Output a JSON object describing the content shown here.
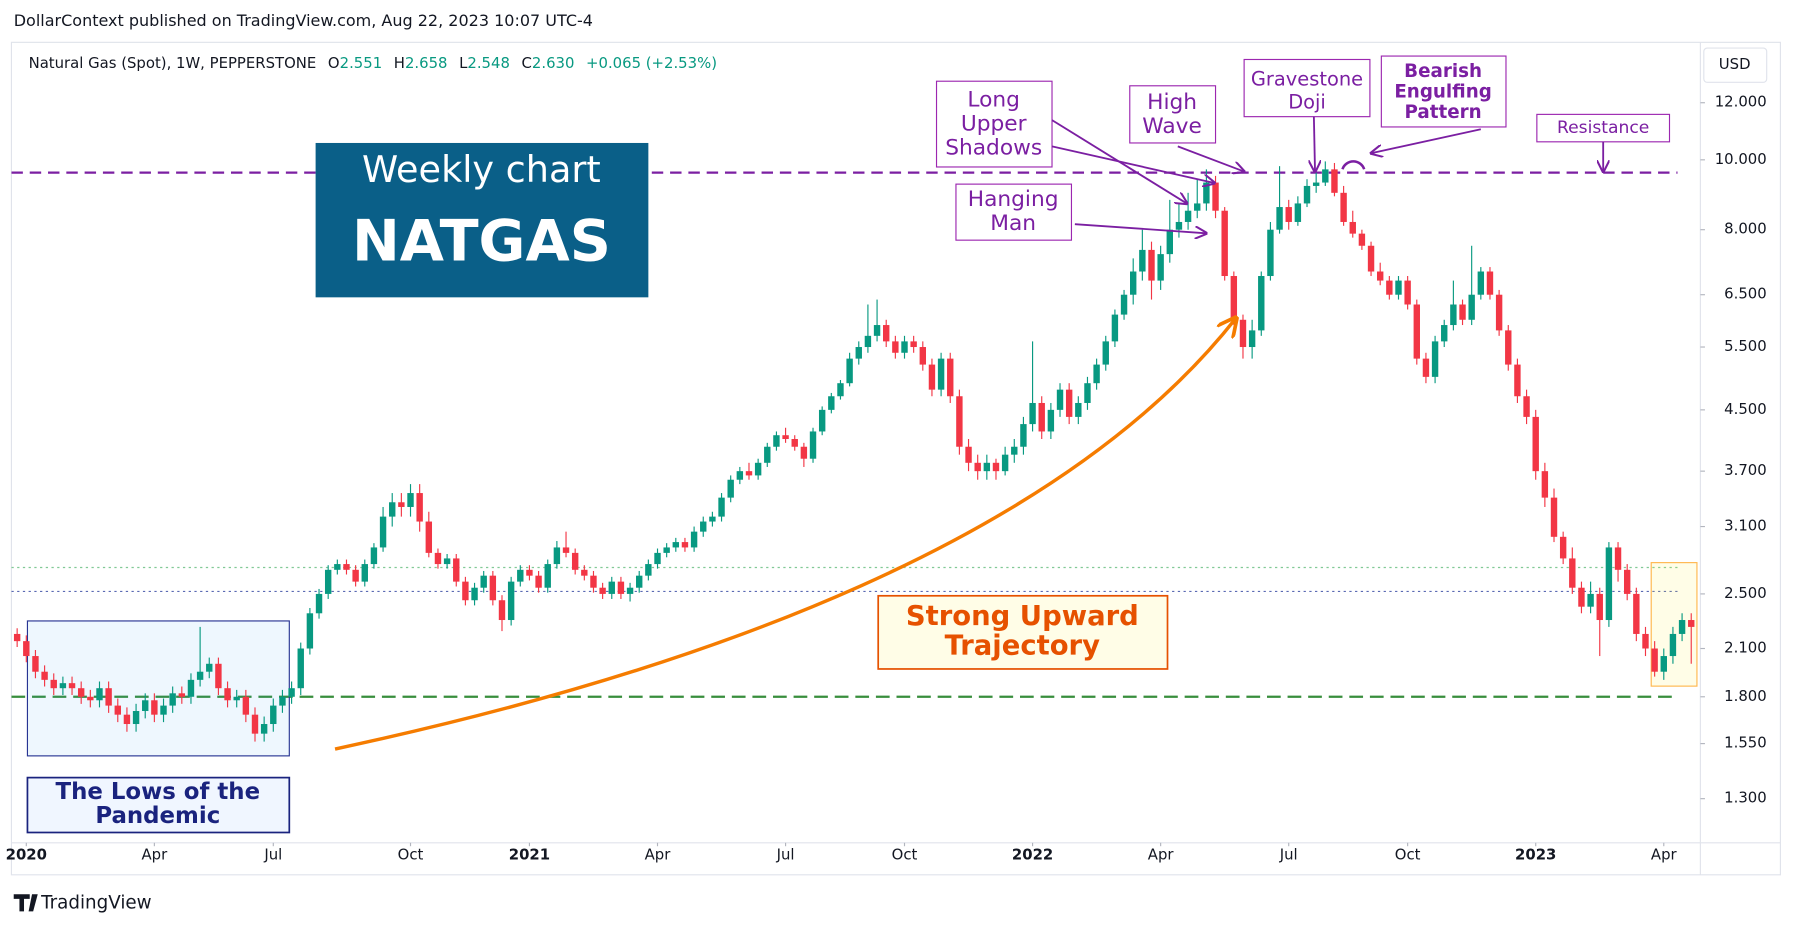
{
  "header": "DollarContext published on TradingView.com, Aug 22, 2023 10:07 UTC-4",
  "footer": "TradingView",
  "chart_data": {
    "type": "candlestick",
    "legend": {
      "symbol": "Natural Gas (Spot), 1W, PEPPERSTONE",
      "o_label": "O",
      "o": "2.551",
      "h_label": "H",
      "h": "2.658",
      "l_label": "L",
      "l": "2.548",
      "c_label": "C",
      "c": "2.630",
      "change": "+0.065 (+2.53%)"
    },
    "currency": "USD",
    "log_scale": true,
    "up_color": "#089981",
    "down_color": "#f23645",
    "ylim": [
      1.15,
      14.5
    ],
    "yticks": [
      {
        "value": 12,
        "label": "12.000"
      },
      {
        "value": 10,
        "label": "10.000"
      },
      {
        "value": 8,
        "label": "8.000"
      },
      {
        "value": 6.5,
        "label": "6.500"
      },
      {
        "value": 5.5,
        "label": "5.500"
      },
      {
        "value": 4.5,
        "label": "4.500"
      },
      {
        "value": 3.7,
        "label": "3.700"
      },
      {
        "value": 3.1,
        "label": "3.100"
      },
      {
        "value": 2.5,
        "label": "2.500"
      },
      {
        "value": 2.1,
        "label": "2.100"
      },
      {
        "value": 1.8,
        "label": "1.800"
      },
      {
        "value": 1.55,
        "label": "1.550"
      },
      {
        "value": 1.3,
        "label": "1.300"
      }
    ],
    "x_labels": [
      {
        "value": 1,
        "label": "2020"
      },
      {
        "value": 15,
        "label": "Apr"
      },
      {
        "value": 28,
        "label": "Jul"
      },
      {
        "value": 43,
        "label": "Oct"
      },
      {
        "value": 56,
        "label": "2021"
      },
      {
        "value": 70,
        "label": "Apr"
      },
      {
        "value": 84,
        "label": "Jul"
      },
      {
        "value": 97,
        "label": "Oct"
      },
      {
        "value": 111,
        "label": "2022"
      },
      {
        "value": 125,
        "label": "Apr"
      },
      {
        "value": 139,
        "label": "Jul"
      },
      {
        "value": 152,
        "label": "Oct"
      },
      {
        "value": 166,
        "label": "2023"
      },
      {
        "value": 180,
        "label": "Apr"
      }
    ],
    "hlines": [
      {
        "value": 9.6,
        "color": "#7b1fa2",
        "style": "dashed"
      },
      {
        "value": 1.8,
        "color": "#388e3c",
        "style": "dashed"
      },
      {
        "value": 2.52,
        "color": "#5b6ab3",
        "style": "dotted"
      },
      {
        "value": 2.72,
        "color": "#81c995",
        "style": "dotted"
      }
    ],
    "annotations": [
      {
        "lines": [
          "Weekly chart",
          "NATGAS"
        ]
      },
      {
        "lines": [
          "Long",
          "Upper",
          "Shadows"
        ]
      },
      {
        "lines": [
          "High",
          "Wave"
        ]
      },
      {
        "lines": [
          "Gravestone",
          "Doji"
        ]
      },
      {
        "lines": [
          "Bearish",
          "Engulfing",
          "Pattern"
        ]
      },
      {
        "lines": [
          "Hanging",
          "Man"
        ]
      },
      {
        "lines": [
          "Resistance"
        ]
      },
      {
        "lines": [
          "Strong Upward",
          "Trajectory"
        ]
      },
      {
        "lines": [
          "The Lows of the",
          "Pandemic"
        ]
      }
    ],
    "ohlc": [
      [
        2.2,
        2.24,
        2.11,
        2.15
      ],
      [
        2.15,
        2.19,
        2.01,
        2.05
      ],
      [
        2.05,
        2.09,
        1.91,
        1.95
      ],
      [
        1.95,
        1.99,
        1.86,
        1.9
      ],
      [
        1.9,
        1.94,
        1.81,
        1.85
      ],
      [
        1.85,
        1.92,
        1.81,
        1.88
      ],
      [
        1.88,
        1.92,
        1.81,
        1.85
      ],
      [
        1.85,
        1.89,
        1.76,
        1.8
      ],
      [
        1.8,
        1.84,
        1.74,
        1.78
      ],
      [
        1.78,
        1.89,
        1.74,
        1.85
      ],
      [
        1.85,
        1.89,
        1.71,
        1.75
      ],
      [
        1.75,
        1.79,
        1.66,
        1.7
      ],
      [
        1.7,
        1.74,
        1.61,
        1.65
      ],
      [
        1.65,
        1.76,
        1.61,
        1.72
      ],
      [
        1.72,
        1.82,
        1.68,
        1.78
      ],
      [
        1.78,
        1.82,
        1.66,
        1.7
      ],
      [
        1.7,
        1.79,
        1.66,
        1.75
      ],
      [
        1.75,
        1.86,
        1.71,
        1.82
      ],
      [
        1.82,
        1.86,
        1.76,
        1.8
      ],
      [
        1.8,
        1.94,
        1.76,
        1.9
      ],
      [
        1.9,
        2.25,
        1.86,
        1.95
      ],
      [
        1.95,
        2.04,
        1.91,
        2.0
      ],
      [
        2.0,
        2.04,
        1.81,
        1.85
      ],
      [
        1.85,
        1.89,
        1.74,
        1.78
      ],
      [
        1.78,
        1.84,
        1.74,
        1.8
      ],
      [
        1.8,
        1.84,
        1.66,
        1.7
      ],
      [
        1.7,
        1.74,
        1.56,
        1.6
      ],
      [
        1.6,
        1.69,
        1.56,
        1.65
      ],
      [
        1.65,
        1.79,
        1.61,
        1.75
      ],
      [
        1.75,
        1.84,
        1.71,
        1.8
      ],
      [
        1.8,
        1.89,
        1.76,
        1.85
      ],
      [
        1.85,
        2.14,
        1.81,
        2.1
      ],
      [
        2.1,
        2.39,
        2.06,
        2.35
      ],
      [
        2.35,
        2.54,
        2.31,
        2.5
      ],
      [
        2.5,
        2.74,
        2.46,
        2.7
      ],
      [
        2.7,
        2.79,
        2.66,
        2.75
      ],
      [
        2.75,
        2.79,
        2.66,
        2.7
      ],
      [
        2.7,
        2.74,
        2.56,
        2.6
      ],
      [
        2.6,
        2.79,
        2.56,
        2.75
      ],
      [
        2.75,
        2.94,
        2.71,
        2.9
      ],
      [
        2.9,
        3.3,
        2.86,
        3.2
      ],
      [
        3.2,
        3.45,
        3.1,
        3.35
      ],
      [
        3.35,
        3.45,
        3.2,
        3.3
      ],
      [
        3.3,
        3.55,
        3.2,
        3.45
      ],
      [
        3.45,
        3.55,
        3.05,
        3.15
      ],
      [
        3.15,
        3.25,
        2.81,
        2.85
      ],
      [
        2.85,
        2.89,
        2.71,
        2.75
      ],
      [
        2.75,
        2.84,
        2.71,
        2.8
      ],
      [
        2.8,
        2.84,
        2.56,
        2.6
      ],
      [
        2.6,
        2.64,
        2.41,
        2.45
      ],
      [
        2.45,
        2.59,
        2.41,
        2.55
      ],
      [
        2.55,
        2.69,
        2.51,
        2.65
      ],
      [
        2.65,
        2.69,
        2.41,
        2.45
      ],
      [
        2.45,
        2.49,
        2.22,
        2.3
      ],
      [
        2.3,
        2.64,
        2.26,
        2.6
      ],
      [
        2.6,
        2.74,
        2.56,
        2.7
      ],
      [
        2.7,
        2.74,
        2.61,
        2.65
      ],
      [
        2.65,
        2.69,
        2.51,
        2.55
      ],
      [
        2.55,
        2.79,
        2.51,
        2.75
      ],
      [
        2.75,
        2.96,
        2.71,
        2.9
      ],
      [
        2.9,
        3.05,
        2.81,
        2.85
      ],
      [
        2.85,
        2.89,
        2.66,
        2.7
      ],
      [
        2.7,
        2.74,
        2.61,
        2.65
      ],
      [
        2.65,
        2.69,
        2.51,
        2.55
      ],
      [
        2.55,
        2.59,
        2.46,
        2.5
      ],
      [
        2.5,
        2.64,
        2.46,
        2.6
      ],
      [
        2.6,
        2.64,
        2.46,
        2.5
      ],
      [
        2.5,
        2.59,
        2.44,
        2.55
      ],
      [
        2.55,
        2.69,
        2.51,
        2.65
      ],
      [
        2.65,
        2.79,
        2.61,
        2.75
      ],
      [
        2.75,
        2.89,
        2.71,
        2.85
      ],
      [
        2.85,
        2.94,
        2.81,
        2.9
      ],
      [
        2.9,
        2.99,
        2.86,
        2.95
      ],
      [
        2.95,
        2.99,
        2.86,
        2.9
      ],
      [
        2.9,
        3.1,
        2.86,
        3.05
      ],
      [
        3.05,
        3.2,
        3.0,
        3.15
      ],
      [
        3.15,
        3.25,
        3.1,
        3.2
      ],
      [
        3.2,
        3.45,
        3.15,
        3.4
      ],
      [
        3.4,
        3.65,
        3.35,
        3.6
      ],
      [
        3.6,
        3.75,
        3.55,
        3.7
      ],
      [
        3.7,
        3.8,
        3.6,
        3.65
      ],
      [
        3.65,
        3.85,
        3.6,
        3.8
      ],
      [
        3.8,
        4.05,
        3.75,
        4.0
      ],
      [
        4.0,
        4.2,
        3.95,
        4.15
      ],
      [
        4.15,
        4.25,
        4.05,
        4.1
      ],
      [
        4.1,
        4.15,
        3.95,
        4.0
      ],
      [
        4.0,
        4.05,
        3.75,
        3.85
      ],
      [
        3.85,
        4.25,
        3.8,
        4.2
      ],
      [
        4.2,
        4.55,
        4.15,
        4.5
      ],
      [
        4.5,
        4.75,
        4.45,
        4.7
      ],
      [
        4.7,
        4.95,
        4.65,
        4.9
      ],
      [
        4.9,
        5.4,
        4.85,
        5.3
      ],
      [
        5.3,
        5.6,
        5.2,
        5.5
      ],
      [
        5.5,
        6.3,
        5.4,
        5.7
      ],
      [
        5.7,
        6.4,
        5.6,
        5.9
      ],
      [
        5.9,
        6.0,
        5.5,
        5.6
      ],
      [
        5.6,
        5.7,
        5.3,
        5.4
      ],
      [
        5.4,
        5.7,
        5.3,
        5.6
      ],
      [
        5.6,
        5.7,
        5.4,
        5.5
      ],
      [
        5.5,
        5.6,
        5.1,
        5.2
      ],
      [
        5.2,
        5.3,
        4.7,
        4.8
      ],
      [
        4.8,
        5.4,
        4.7,
        5.3
      ],
      [
        5.3,
        5.4,
        4.6,
        4.7
      ],
      [
        4.7,
        4.8,
        3.9,
        4.0
      ],
      [
        4.0,
        4.1,
        3.7,
        3.8
      ],
      [
        3.8,
        3.9,
        3.6,
        3.7
      ],
      [
        3.7,
        3.9,
        3.6,
        3.8
      ],
      [
        3.8,
        3.85,
        3.6,
        3.7
      ],
      [
        3.7,
        4.0,
        3.65,
        3.9
      ],
      [
        3.9,
        4.1,
        3.8,
        4.0
      ],
      [
        4.0,
        4.4,
        3.9,
        4.3
      ],
      [
        4.3,
        5.6,
        4.2,
        4.6
      ],
      [
        4.6,
        4.7,
        4.1,
        4.2
      ],
      [
        4.2,
        4.6,
        4.1,
        4.5
      ],
      [
        4.5,
        4.9,
        4.4,
        4.8
      ],
      [
        4.8,
        4.9,
        4.3,
        4.4
      ],
      [
        4.4,
        4.7,
        4.3,
        4.6
      ],
      [
        4.6,
        5.0,
        4.5,
        4.9
      ],
      [
        4.9,
        5.3,
        4.8,
        5.2
      ],
      [
        5.2,
        5.7,
        5.1,
        5.6
      ],
      [
        5.6,
        6.2,
        5.5,
        6.1
      ],
      [
        6.1,
        6.6,
        6.0,
        6.5
      ],
      [
        6.5,
        7.3,
        6.3,
        7.0
      ],
      [
        7.0,
        8.0,
        6.8,
        7.5
      ],
      [
        7.5,
        7.7,
        6.4,
        6.8
      ],
      [
        6.8,
        7.6,
        6.6,
        7.4
      ],
      [
        7.4,
        8.8,
        7.2,
        8.0
      ],
      [
        8.0,
        8.7,
        7.8,
        8.2
      ],
      [
        8.2,
        9.0,
        8.0,
        8.5
      ],
      [
        8.5,
        9.4,
        8.3,
        8.7
      ],
      [
        8.7,
        9.7,
        8.5,
        9.3
      ],
      [
        9.3,
        9.5,
        8.3,
        8.5
      ],
      [
        8.5,
        8.6,
        6.8,
        6.9
      ],
      [
        6.9,
        7.0,
        5.9,
        6.0
      ],
      [
        6.0,
        6.1,
        5.3,
        5.5
      ],
      [
        5.5,
        6.0,
        5.3,
        5.8
      ],
      [
        5.8,
        7.0,
        5.7,
        6.9
      ],
      [
        6.9,
        8.2,
        6.8,
        8.0
      ],
      [
        8.0,
        9.8,
        7.9,
        8.6
      ],
      [
        8.6,
        8.8,
        8.0,
        8.2
      ],
      [
        8.2,
        8.9,
        8.1,
        8.7
      ],
      [
        8.7,
        9.4,
        8.6,
        9.2
      ],
      [
        9.2,
        9.6,
        9.0,
        9.3
      ],
      [
        9.3,
        9.95,
        9.2,
        9.7
      ],
      [
        9.7,
        9.9,
        8.9,
        9.0
      ],
      [
        9.0,
        9.2,
        8.1,
        8.2
      ],
      [
        8.2,
        8.5,
        7.8,
        7.9
      ],
      [
        7.9,
        8.0,
        7.5,
        7.6
      ],
      [
        7.6,
        7.7,
        6.9,
        7.0
      ],
      [
        7.0,
        7.2,
        6.7,
        6.8
      ],
      [
        6.8,
        6.9,
        6.4,
        6.5
      ],
      [
        6.5,
        6.9,
        6.4,
        6.8
      ],
      [
        6.8,
        6.9,
        6.2,
        6.3
      ],
      [
        6.3,
        6.4,
        5.2,
        5.3
      ],
      [
        5.3,
        5.4,
        4.9,
        5.0
      ],
      [
        5.0,
        5.7,
        4.9,
        5.6
      ],
      [
        5.6,
        6.0,
        5.5,
        5.9
      ],
      [
        5.9,
        6.8,
        5.8,
        6.3
      ],
      [
        6.3,
        6.4,
        5.9,
        6.0
      ],
      [
        6.0,
        7.6,
        5.9,
        6.5
      ],
      [
        6.5,
        7.1,
        6.4,
        7.0
      ],
      [
        7.0,
        7.1,
        6.4,
        6.5
      ],
      [
        6.5,
        6.6,
        5.7,
        5.8
      ],
      [
        5.8,
        5.9,
        5.1,
        5.2
      ],
      [
        5.2,
        5.3,
        4.6,
        4.7
      ],
      [
        4.7,
        4.8,
        4.3,
        4.4
      ],
      [
        4.4,
        4.5,
        3.6,
        3.7
      ],
      [
        3.7,
        3.8,
        3.3,
        3.4
      ],
      [
        3.4,
        3.5,
        2.95,
        3.0
      ],
      [
        3.0,
        3.05,
        2.75,
        2.8
      ],
      [
        2.8,
        2.9,
        2.5,
        2.55
      ],
      [
        2.55,
        2.6,
        2.35,
        2.4
      ],
      [
        2.4,
        2.6,
        2.35,
        2.5
      ],
      [
        2.5,
        2.55,
        2.05,
        2.3
      ],
      [
        2.3,
        2.95,
        2.25,
        2.9
      ],
      [
        2.9,
        2.95,
        2.6,
        2.7
      ],
      [
        2.7,
        2.75,
        2.45,
        2.5
      ],
      [
        2.5,
        2.55,
        2.15,
        2.2
      ],
      [
        2.2,
        2.25,
        2.05,
        2.1
      ],
      [
        2.1,
        2.15,
        1.92,
        1.95
      ],
      [
        1.95,
        2.1,
        1.9,
        2.05
      ],
      [
        2.05,
        2.25,
        2.0,
        2.2
      ],
      [
        2.2,
        2.35,
        2.15,
        2.3
      ],
      [
        2.3,
        2.35,
        2.0,
        2.25
      ]
    ]
  }
}
